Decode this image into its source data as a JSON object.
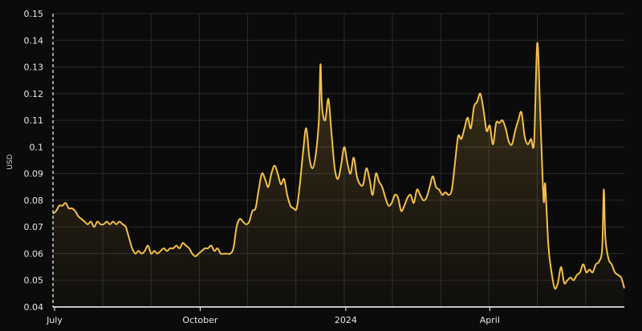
{
  "chart_data": {
    "type": "area",
    "ylabel": "USD",
    "ylim": [
      0.04,
      0.15
    ],
    "yticks": [
      "0.04",
      "0.05",
      "0.06",
      "0.07",
      "0.08",
      "0.09",
      "0.1",
      "0.11",
      "0.12",
      "0.13",
      "0.14",
      "0.15"
    ],
    "xticks": [
      {
        "label": "July",
        "t": 0.0
      },
      {
        "label": "October",
        "t": 92
      },
      {
        "label": "2024",
        "t": 184
      },
      {
        "label": "April",
        "t": 275
      }
    ],
    "xlim": [
      -1,
      360
    ],
    "grid": true,
    "line_color": "#f5c04a",
    "fill_color": "#f5c04a",
    "series": [
      {
        "points": [
          [
            -1,
            0.075
          ],
          [
            1,
            0.076
          ],
          [
            3,
            0.078
          ],
          [
            5,
            0.078
          ],
          [
            7,
            0.079
          ],
          [
            9,
            0.077
          ],
          [
            11,
            0.077
          ],
          [
            13,
            0.076
          ],
          [
            15,
            0.074
          ],
          [
            17,
            0.073
          ],
          [
            19,
            0.072
          ],
          [
            21,
            0.071
          ],
          [
            23,
            0.072
          ],
          [
            25,
            0.07
          ],
          [
            27,
            0.072
          ],
          [
            29,
            0.071
          ],
          [
            31,
            0.071
          ],
          [
            33,
            0.072
          ],
          [
            35,
            0.071
          ],
          [
            37,
            0.072
          ],
          [
            39,
            0.071
          ],
          [
            41,
            0.072
          ],
          [
            43,
            0.071
          ],
          [
            45,
            0.07
          ],
          [
            47,
            0.066
          ],
          [
            49,
            0.062
          ],
          [
            51,
            0.06
          ],
          [
            53,
            0.061
          ],
          [
            55,
            0.06
          ],
          [
            57,
            0.061
          ],
          [
            59,
            0.063
          ],
          [
            61,
            0.06
          ],
          [
            63,
            0.061
          ],
          [
            65,
            0.06
          ],
          [
            67,
            0.061
          ],
          [
            69,
            0.062
          ],
          [
            71,
            0.061
          ],
          [
            73,
            0.062
          ],
          [
            75,
            0.062
          ],
          [
            77,
            0.063
          ],
          [
            79,
            0.062
          ],
          [
            81,
            0.064
          ],
          [
            83,
            0.063
          ],
          [
            85,
            0.062
          ],
          [
            87,
            0.06
          ],
          [
            89,
            0.059
          ],
          [
            91,
            0.06
          ],
          [
            93,
            0.061
          ],
          [
            95,
            0.062
          ],
          [
            97,
            0.062
          ],
          [
            99,
            0.063
          ],
          [
            101,
            0.061
          ],
          [
            103,
            0.062
          ],
          [
            105,
            0.06
          ],
          [
            107,
            0.06
          ],
          [
            109,
            0.06
          ],
          [
            111,
            0.06
          ],
          [
            113,
            0.062
          ],
          [
            115,
            0.07
          ],
          [
            117,
            0.073
          ],
          [
            119,
            0.072
          ],
          [
            121,
            0.071
          ],
          [
            123,
            0.072
          ],
          [
            125,
            0.076
          ],
          [
            127,
            0.077
          ],
          [
            129,
            0.084
          ],
          [
            131,
            0.09
          ],
          [
            133,
            0.088
          ],
          [
            135,
            0.085
          ],
          [
            137,
            0.09
          ],
          [
            139,
            0.093
          ],
          [
            141,
            0.09
          ],
          [
            143,
            0.086
          ],
          [
            145,
            0.088
          ],
          [
            147,
            0.082
          ],
          [
            149,
            0.078
          ],
          [
            151,
            0.077
          ],
          [
            153,
            0.077
          ],
          [
            155,
            0.086
          ],
          [
            157,
            0.098
          ],
          [
            159,
            0.107
          ],
          [
            161,
            0.096
          ],
          [
            163,
            0.092
          ],
          [
            165,
            0.097
          ],
          [
            167,
            0.11
          ],
          [
            168,
            0.131
          ],
          [
            169,
            0.115
          ],
          [
            171,
            0.11
          ],
          [
            173,
            0.118
          ],
          [
            175,
            0.105
          ],
          [
            177,
            0.092
          ],
          [
            179,
            0.088
          ],
          [
            181,
            0.093
          ],
          [
            183,
            0.1
          ],
          [
            185,
            0.094
          ],
          [
            187,
            0.09
          ],
          [
            189,
            0.096
          ],
          [
            191,
            0.089
          ],
          [
            193,
            0.086
          ],
          [
            195,
            0.086
          ],
          [
            197,
            0.092
          ],
          [
            199,
            0.088
          ],
          [
            201,
            0.082
          ],
          [
            203,
            0.09
          ],
          [
            205,
            0.087
          ],
          [
            207,
            0.085
          ],
          [
            209,
            0.081
          ],
          [
            211,
            0.078
          ],
          [
            213,
            0.079
          ],
          [
            215,
            0.082
          ],
          [
            217,
            0.081
          ],
          [
            219,
            0.076
          ],
          [
            221,
            0.078
          ],
          [
            223,
            0.081
          ],
          [
            225,
            0.082
          ],
          [
            227,
            0.079
          ],
          [
            229,
            0.084
          ],
          [
            231,
            0.082
          ],
          [
            233,
            0.08
          ],
          [
            235,
            0.081
          ],
          [
            237,
            0.085
          ],
          [
            239,
            0.089
          ],
          [
            241,
            0.085
          ],
          [
            243,
            0.084
          ],
          [
            245,
            0.082
          ],
          [
            247,
            0.083
          ],
          [
            249,
            0.082
          ],
          [
            251,
            0.084
          ],
          [
            253,
            0.094
          ],
          [
            255,
            0.104
          ],
          [
            257,
            0.103
          ],
          [
            259,
            0.107
          ],
          [
            261,
            0.111
          ],
          [
            263,
            0.107
          ],
          [
            265,
            0.115
          ],
          [
            267,
            0.117
          ],
          [
            269,
            0.12
          ],
          [
            271,
            0.114
          ],
          [
            273,
            0.106
          ],
          [
            275,
            0.108
          ],
          [
            277,
            0.101
          ],
          [
            279,
            0.109
          ],
          [
            281,
            0.109
          ],
          [
            283,
            0.11
          ],
          [
            285,
            0.107
          ],
          [
            287,
            0.102
          ],
          [
            289,
            0.101
          ],
          [
            291,
            0.106
          ],
          [
            293,
            0.11
          ],
          [
            295,
            0.113
          ],
          [
            297,
            0.104
          ],
          [
            299,
            0.101
          ],
          [
            301,
            0.103
          ],
          [
            303,
            0.102
          ],
          [
            305,
            0.139
          ],
          [
            307,
            0.11
          ],
          [
            309,
            0.08
          ],
          [
            310,
            0.086
          ],
          [
            312,
            0.063
          ],
          [
            314,
            0.053
          ],
          [
            316,
            0.047
          ],
          [
            318,
            0.049
          ],
          [
            320,
            0.055
          ],
          [
            322,
            0.049
          ],
          [
            324,
            0.05
          ],
          [
            326,
            0.051
          ],
          [
            328,
            0.05
          ],
          [
            330,
            0.052
          ],
          [
            332,
            0.053
          ],
          [
            334,
            0.056
          ],
          [
            336,
            0.053
          ],
          [
            338,
            0.054
          ],
          [
            340,
            0.053
          ],
          [
            342,
            0.056
          ],
          [
            344,
            0.057
          ],
          [
            346,
            0.062
          ],
          [
            347,
            0.084
          ],
          [
            348,
            0.066
          ],
          [
            350,
            0.058
          ],
          [
            352,
            0.056
          ],
          [
            354,
            0.053
          ],
          [
            356,
            0.052
          ],
          [
            358,
            0.051
          ],
          [
            360,
            0.047
          ]
        ]
      }
    ]
  }
}
